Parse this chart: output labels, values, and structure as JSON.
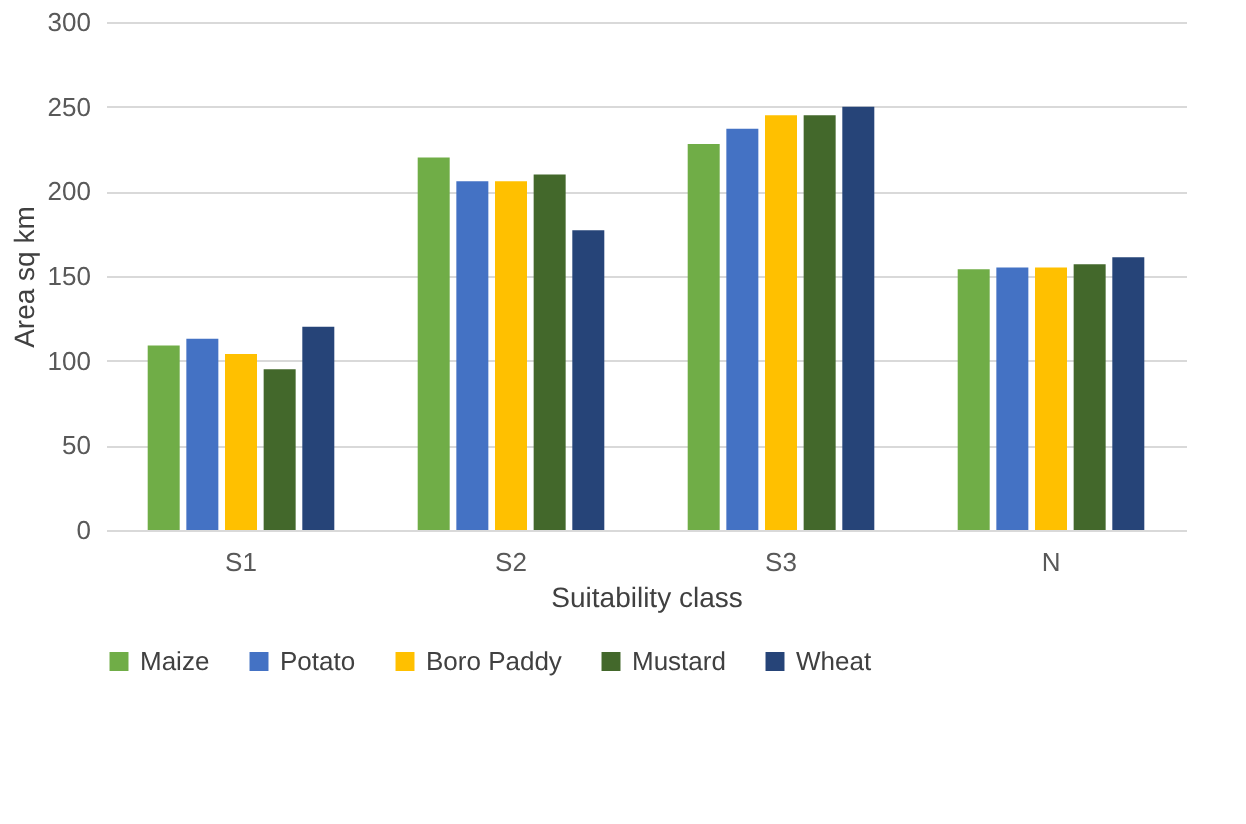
{
  "chart_data": {
    "type": "bar",
    "xlabel": "Suitability class",
    "ylabel": "Area sq km",
    "categories": [
      "S1",
      "S2",
      "S3",
      "N"
    ],
    "series": [
      {
        "name": "Maize",
        "color": "#70ad47",
        "values": [
          109,
          220,
          228,
          154
        ]
      },
      {
        "name": "Potato",
        "color": "#4472c4",
        "values": [
          113,
          206,
          237,
          155
        ]
      },
      {
        "name": "Boro Paddy",
        "color": "#ffc000",
        "values": [
          104,
          206,
          245,
          155
        ]
      },
      {
        "name": "Mustard",
        "color": "#43682b",
        "values": [
          95,
          210,
          245,
          157
        ]
      },
      {
        "name": "Wheat",
        "color": "#264478",
        "values": [
          120,
          177,
          250,
          161
        ]
      }
    ],
    "ylim": [
      0,
      300
    ],
    "yticks": [
      0,
      50,
      100,
      150,
      200,
      250,
      300
    ],
    "grid": "y",
    "legend": "bottom"
  }
}
